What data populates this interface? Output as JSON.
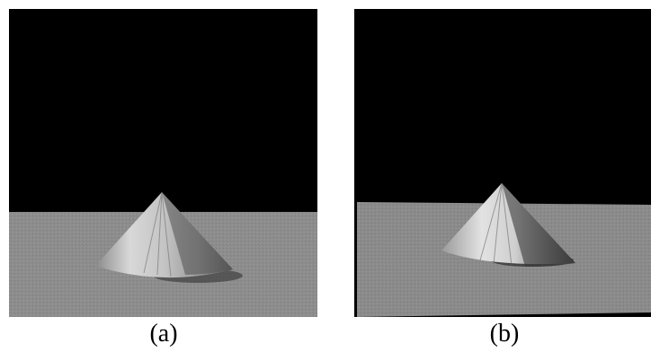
{
  "figure": {
    "panels": [
      {
        "id": "a",
        "caption": "(a)"
      },
      {
        "id": "b",
        "caption": "(b)"
      }
    ]
  },
  "colors": {
    "sky": "#000000",
    "ground": "#8c8c8c",
    "cone_light": "#dedede",
    "cone_mid": "#a6a6a6",
    "cone_dark": "#4a4a4a",
    "shadow": "#3a3a3a"
  }
}
